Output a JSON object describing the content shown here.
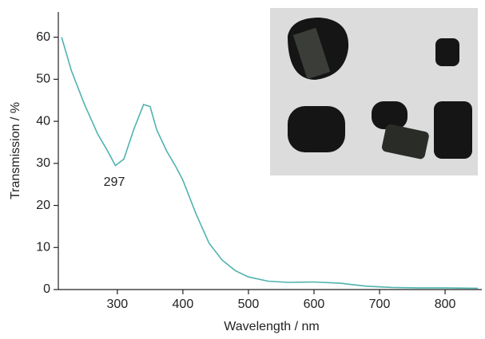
{
  "chart_data": {
    "type": "line",
    "x_label": "Wavelength / nm",
    "y_label": "Transmission / %",
    "annotation": "297",
    "x": [
      215,
      230,
      250,
      270,
      285,
      297,
      310,
      325,
      340,
      350,
      360,
      375,
      390,
      400,
      420,
      440,
      460,
      480,
      500,
      530,
      560,
      600,
      640,
      680,
      720,
      760,
      800,
      850
    ],
    "values": [
      60,
      52,
      44,
      37,
      33,
      29.5,
      31,
      38,
      44,
      43.5,
      38,
      33,
      29,
      26,
      18,
      11,
      7,
      4.5,
      3,
      2,
      1.7,
      1.8,
      1.5,
      0.8,
      0.5,
      0.4,
      0.4,
      0.3
    ],
    "color": "#4fb3ae",
    "xlim": [
      210,
      856
    ],
    "ylim": [
      0,
      66
    ],
    "xticks": [
      300,
      400,
      500,
      600,
      700,
      800
    ],
    "yticks": [
      0,
      10,
      20,
      30,
      40,
      50,
      60
    ]
  }
}
